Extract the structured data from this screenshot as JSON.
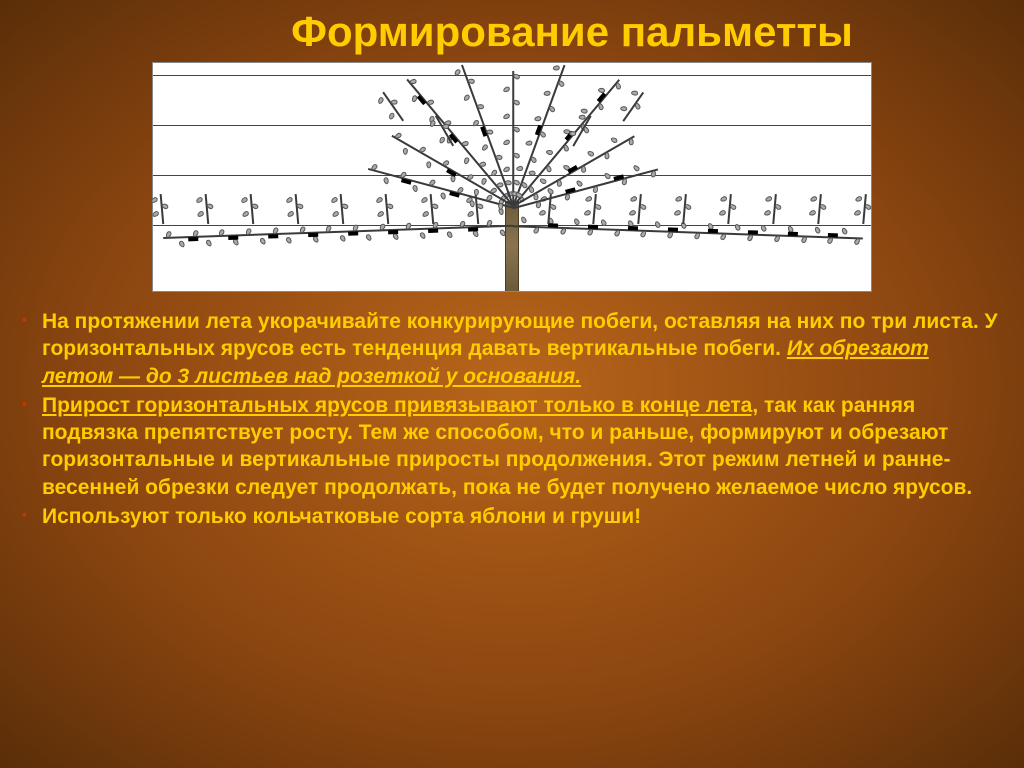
{
  "title": "Формирование пальметты",
  "diagram": {
    "background": "#ffffff",
    "wire_positions": [
      12,
      62,
      112,
      162
    ],
    "wire_color": "#444444",
    "trunk_color": "#8a7450"
  },
  "bullets": [
    {
      "parts": [
        {
          "text": "На протяжении лета укорачивайте конкурирующие побеги, оставляя на них по три листа. У горизонтальных ярусов есть тенденция давать вертикальные побеги. ",
          "style": "normal"
        },
        {
          "text": "Их обрезают летом — до 3 листьев над розеткой у основания.",
          "style": "underline-italic"
        }
      ]
    },
    {
      "parts": [
        {
          "text": "Прирост горизонтальных ярусов привязывают только в конце лета,",
          "style": "underline"
        },
        {
          "text": " так как ранняя подвязка препятствует росту. Тем же способом, что и раньше, формируют и обрезают горизонтальные и вертикальные приросты продолжения. Этот режим летней и ранне-весенней обрезки следует продолжать, пока не будет получено желаемое число ярусов.",
          "style": "normal"
        }
      ]
    },
    {
      "parts": [
        {
          "text": "Используют только кольчатковые сорта яблони и груши!",
          "style": "normal"
        }
      ]
    }
  ],
  "colors": {
    "title_color": "#ffcc00",
    "bullet_text_color": "#ffcc00",
    "bullet_marker_color": "#cc3300",
    "background_inner": "#b8651a",
    "background_outer": "#5a2e08"
  },
  "typography": {
    "title_fontsize": 42,
    "body_fontsize": 21,
    "font_family": "Arial"
  }
}
